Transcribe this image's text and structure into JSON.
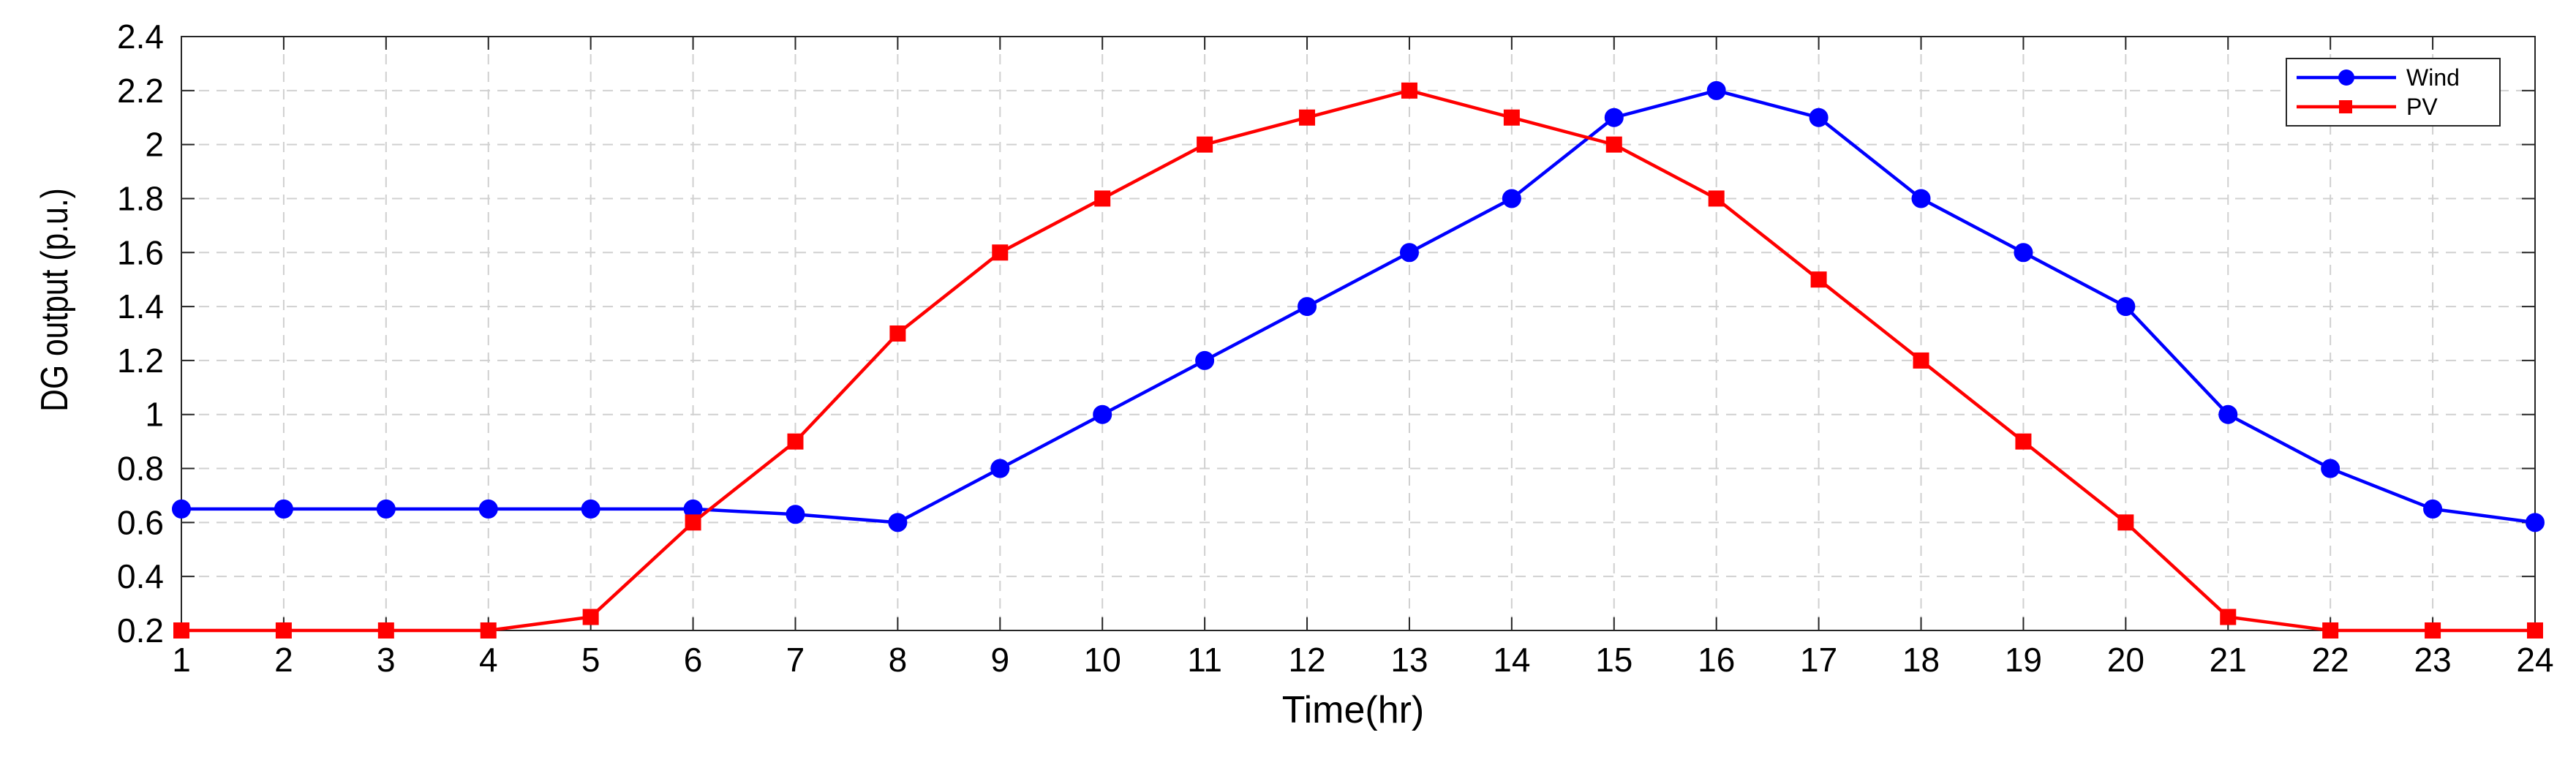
{
  "chart_data": {
    "type": "line",
    "title": "",
    "xlabel": "Time(hr)",
    "ylabel": "DG output (p.u.)",
    "x": [
      1,
      2,
      3,
      4,
      5,
      6,
      7,
      8,
      9,
      10,
      11,
      12,
      13,
      14,
      15,
      16,
      17,
      18,
      19,
      20,
      21,
      22,
      23,
      24
    ],
    "xlim": [
      1,
      24
    ],
    "ylim": [
      0.2,
      2.4
    ],
    "yticks": [
      0.2,
      0.4,
      0.6,
      0.8,
      1,
      1.2,
      1.4,
      1.6,
      1.8,
      2,
      2.2,
      2.4
    ],
    "xticks": [
      1,
      2,
      3,
      4,
      5,
      6,
      7,
      8,
      9,
      10,
      11,
      12,
      13,
      14,
      15,
      16,
      17,
      18,
      19,
      20,
      21,
      22,
      23,
      24
    ],
    "grid": true,
    "legend_position": "top-right",
    "series": [
      {
        "name": "Wind",
        "color": "#0000ff",
        "marker": "circle",
        "values": [
          0.65,
          0.65,
          0.65,
          0.65,
          0.65,
          0.65,
          0.63,
          0.6,
          0.8,
          1.0,
          1.2,
          1.4,
          1.6,
          1.8,
          2.1,
          2.2,
          2.1,
          1.8,
          1.6,
          1.4,
          1.0,
          0.8,
          0.65,
          0.6
        ]
      },
      {
        "name": "PV",
        "color": "#ff0000",
        "marker": "square",
        "values": [
          0.2,
          0.2,
          0.2,
          0.2,
          0.25,
          0.6,
          0.9,
          1.3,
          1.6,
          1.8,
          2.0,
          2.1,
          2.2,
          2.1,
          2.0,
          1.8,
          1.5,
          1.2,
          0.9,
          0.6,
          0.25,
          0.2,
          0.2,
          0.2
        ]
      }
    ]
  }
}
